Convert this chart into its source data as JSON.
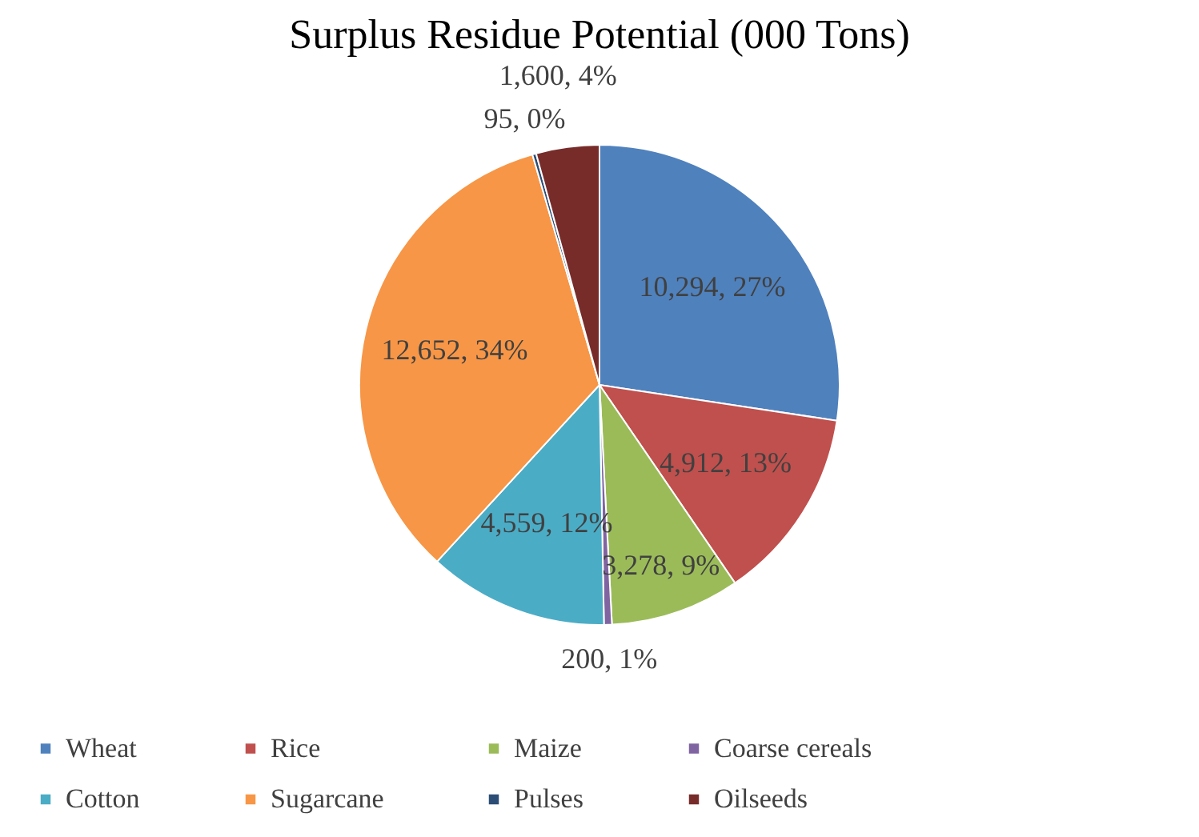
{
  "chart_data": {
    "type": "pie",
    "title": "Surplus Residue Potential (000 Tons)",
    "categories": [
      "Wheat",
      "Rice",
      "Maize",
      "Coarse cereals",
      "Cotton",
      "Sugarcane",
      "Pulses",
      "Oilseeds"
    ],
    "values": [
      10294,
      4912,
      3278,
      200,
      4559,
      12652,
      95,
      1600
    ],
    "colors": [
      "#4f81bd",
      "#c0504d",
      "#9bbb59",
      "#8064a2",
      "#4bacc6",
      "#f79646",
      "#2c4d75",
      "#772c2a"
    ],
    "value_labels": [
      "10,294, 27%",
      "4,912, 13%",
      "3,278, 9%",
      "200, 1%",
      "4,559, 12%",
      "12,652, 34%",
      "95, 0%",
      "1,600, 4%"
    ],
    "legend": "bottom"
  }
}
